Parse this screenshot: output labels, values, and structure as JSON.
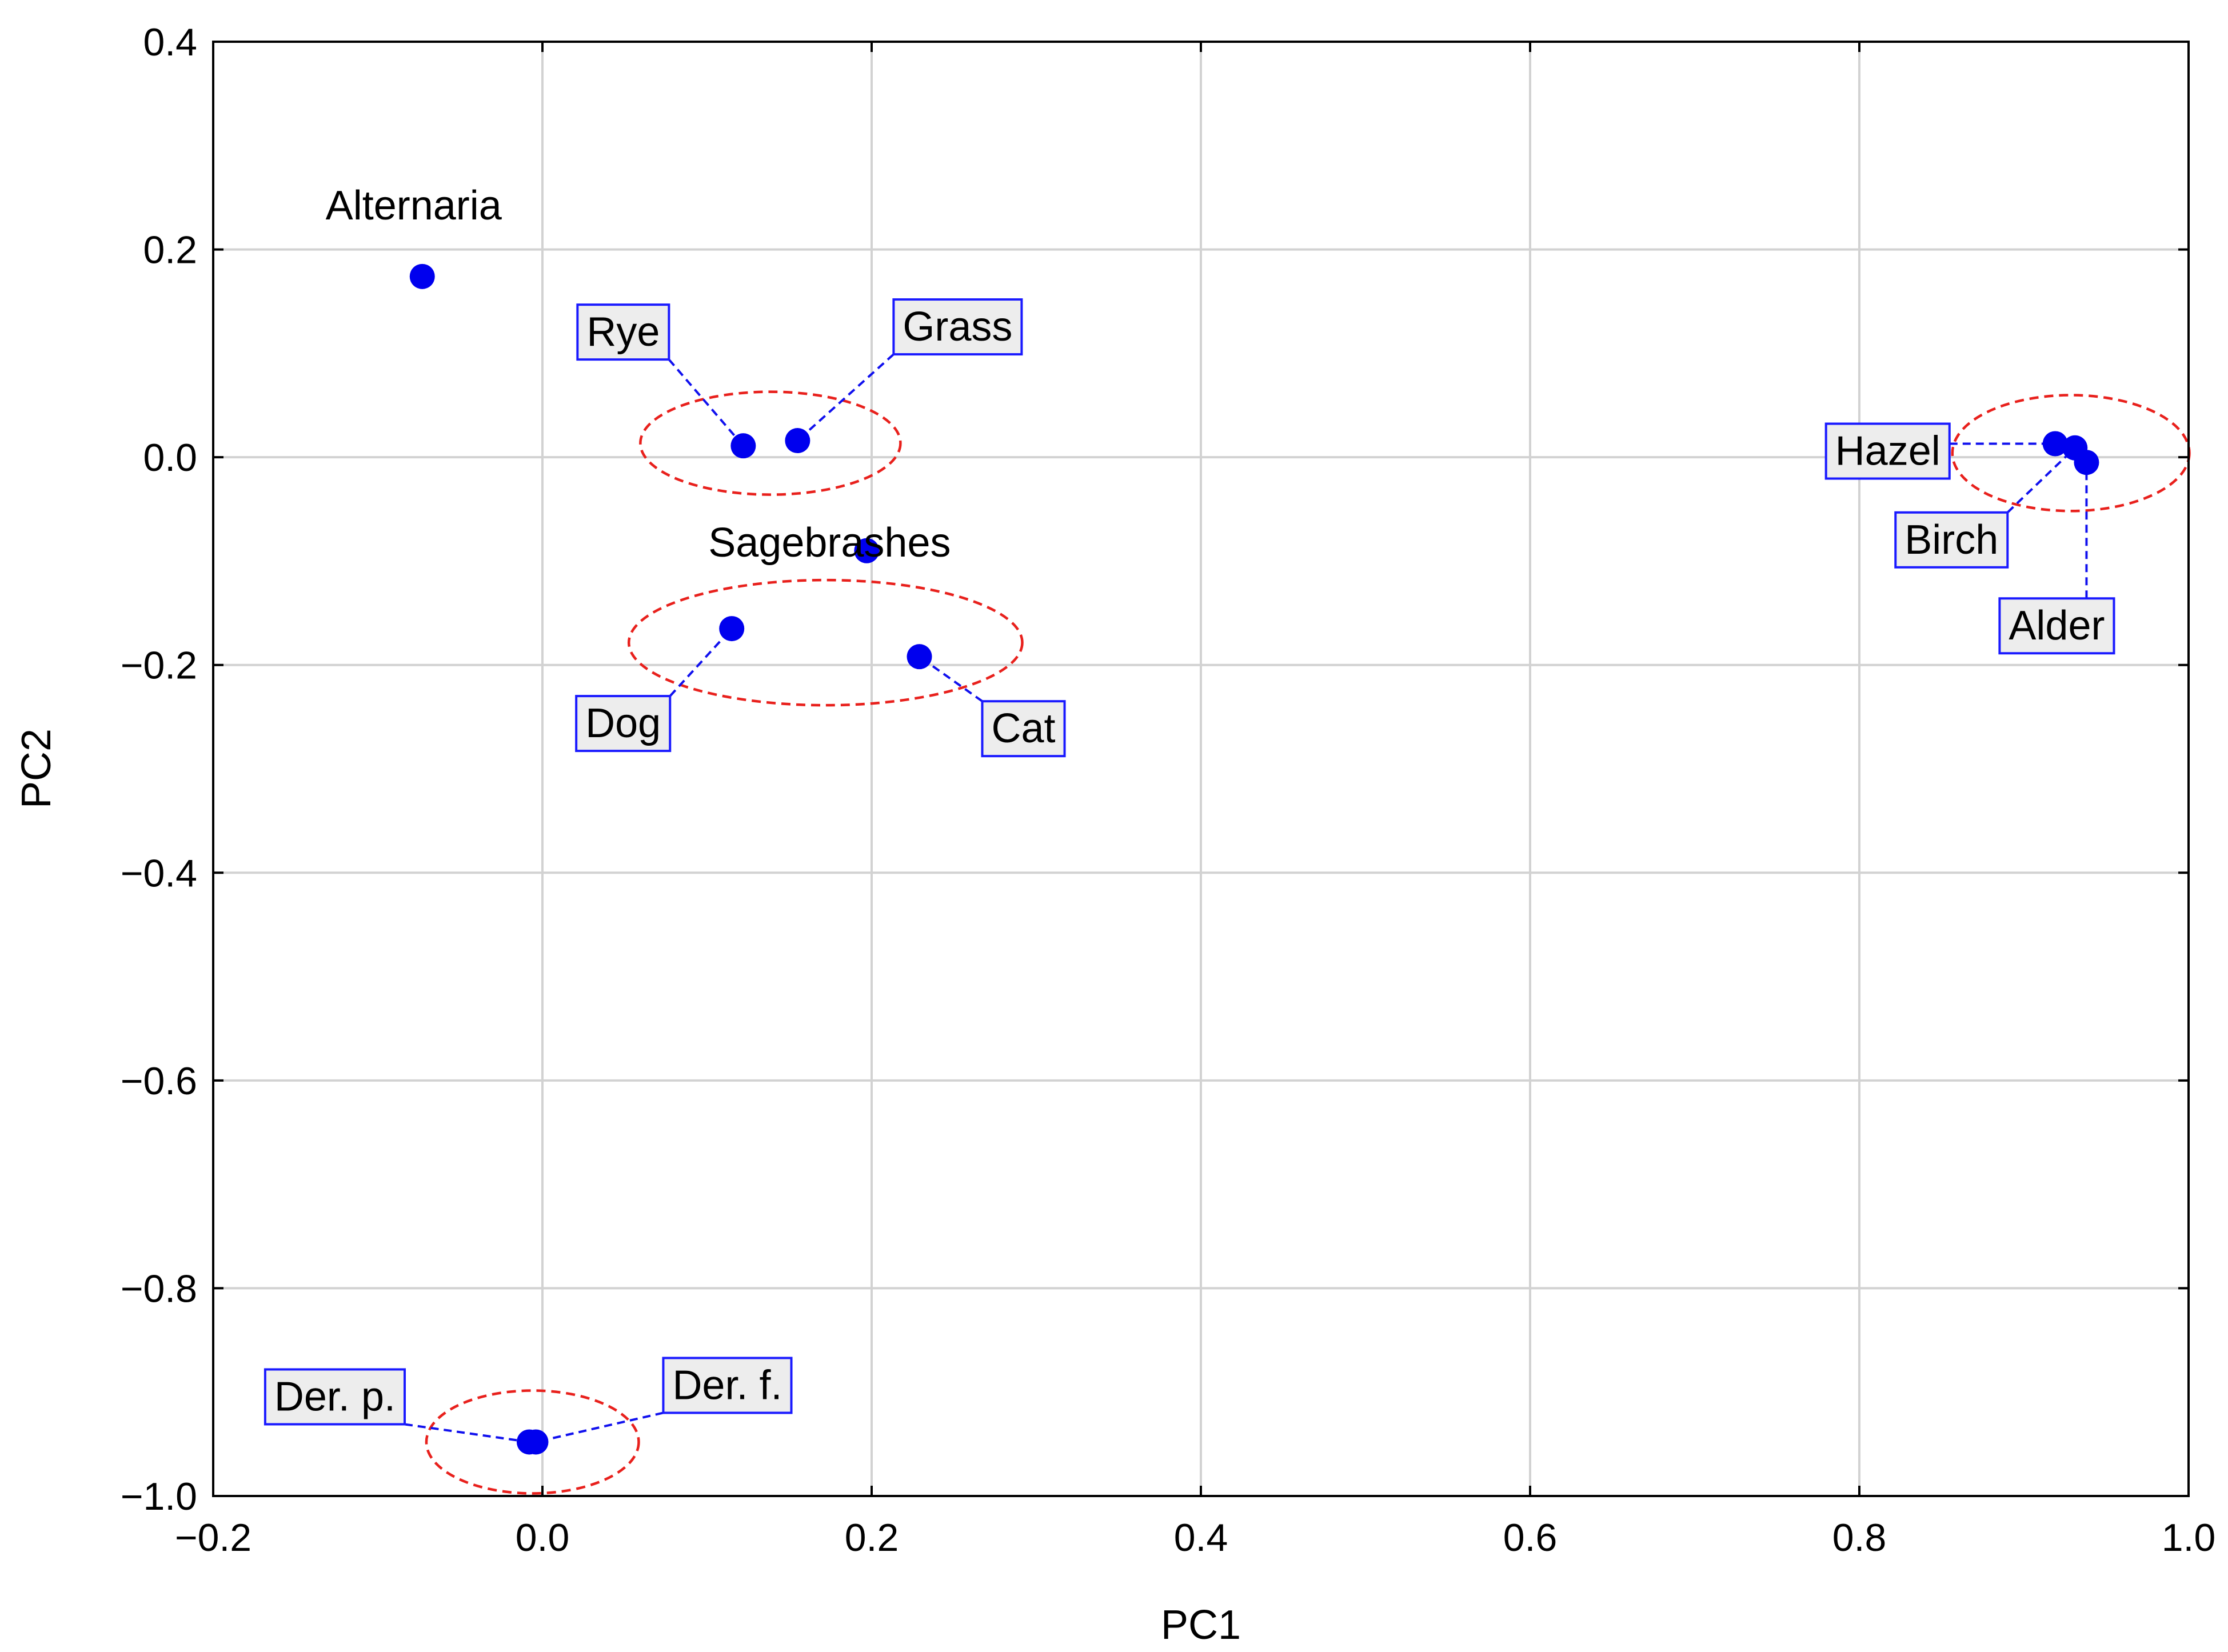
{
  "chart_data": {
    "type": "scatter",
    "title": "",
    "xlabel": "PC1",
    "ylabel": "PC2",
    "xlim": [
      -0.2,
      1.0
    ],
    "ylim": [
      -1.0,
      0.4
    ],
    "xticks": [
      -0.2,
      0.0,
      0.2,
      0.4,
      0.6,
      0.8,
      1.0
    ],
    "yticks": [
      -1.0,
      -0.8,
      -0.6,
      -0.4,
      -0.2,
      0.0,
      0.2,
      0.4
    ],
    "xtick_labels": [
      "−0.2",
      "0.0",
      "0.2",
      "0.4",
      "0.6",
      "0.8",
      "1.0"
    ],
    "ytick_labels": [
      "−1.0",
      "−0.8",
      "−0.6",
      "−0.4",
      "−0.2",
      "0.0",
      "0.2",
      "0.4"
    ],
    "grid": true,
    "marker_color": "#0000ee",
    "label_border_color": "#1a1aff",
    "cluster_color": "#e8201c",
    "points": [
      {
        "label": "Alternaria",
        "x": -0.073,
        "y": 0.174,
        "boxed": false
      },
      {
        "label": "Rye",
        "x": 0.122,
        "y": 0.011,
        "boxed": true
      },
      {
        "label": "Grass",
        "x": 0.155,
        "y": 0.016,
        "boxed": true
      },
      {
        "label": "Sagebrashes",
        "x": 0.197,
        "y": -0.09,
        "boxed": false
      },
      {
        "label": "Dog",
        "x": 0.115,
        "y": -0.165,
        "boxed": true
      },
      {
        "label": "Cat",
        "x": 0.229,
        "y": -0.192,
        "boxed": true
      },
      {
        "label": "Hazel",
        "x": 0.919,
        "y": 0.013,
        "boxed": true
      },
      {
        "label": "Birch",
        "x": 0.931,
        "y": 0.009,
        "boxed": true
      },
      {
        "label": "Alder",
        "x": 0.938,
        "y": -0.005,
        "boxed": true
      },
      {
        "label": "Der. p.",
        "x": -0.008,
        "y": -0.948,
        "boxed": true
      },
      {
        "label": "Der. f.",
        "x": -0.004,
        "y": -0.948,
        "boxed": true
      }
    ],
    "clusters": [
      {
        "members": [
          "Rye",
          "Grass"
        ]
      },
      {
        "members": [
          "Dog",
          "Cat"
        ]
      },
      {
        "members": [
          "Hazel",
          "Birch",
          "Alder"
        ]
      },
      {
        "members": [
          "Der. p.",
          "Der. f."
        ]
      }
    ]
  }
}
